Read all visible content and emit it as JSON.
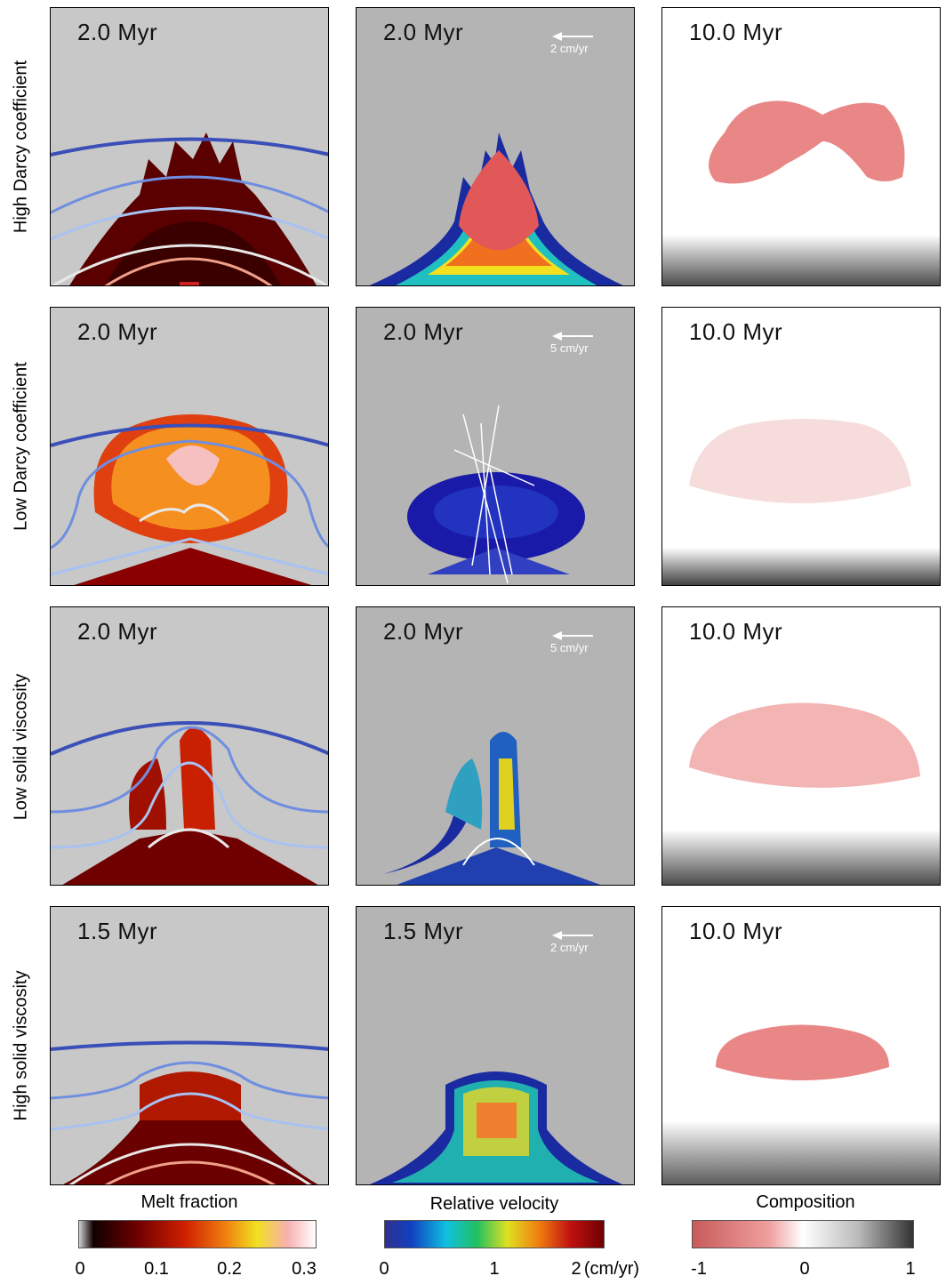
{
  "rows": [
    {
      "label": "High Darcy coefficient",
      "melt_time": "2.0 Myr",
      "vel_time": "2.0 Myr",
      "vel_scale": "2 cm/yr",
      "comp_time": "10.0 Myr"
    },
    {
      "label": "Low Darcy coefficient",
      "melt_time": "2.0 Myr",
      "vel_time": "2.0 Myr",
      "vel_scale": "5 cm/yr",
      "comp_time": "10.0 Myr"
    },
    {
      "label": "Low solid viscosity",
      "melt_time": "2.0 Myr",
      "vel_time": "2.0 Myr",
      "vel_scale": "5 cm/yr",
      "comp_time": "10.0 Myr"
    },
    {
      "label": "High solid viscosity",
      "melt_time": "1.5 Myr",
      "vel_time": "1.5 Myr",
      "vel_scale": "2 cm/yr",
      "comp_time": "10.0 Myr"
    }
  ],
  "colorbars": {
    "melt": {
      "title": "Melt fraction",
      "ticks": [
        "0",
        "0.1",
        "0.2",
        "0.3"
      ]
    },
    "velocity": {
      "title": "Relative velocity",
      "ticks": [
        "0",
        "1",
        "2"
      ],
      "unit": "(cm/yr)"
    },
    "composition": {
      "title": "Composition",
      "ticks": [
        "-1",
        "0",
        "1"
      ]
    }
  },
  "colors": {
    "melt_bg": "#c8c8c8",
    "vel_bg": "#b4b4b4",
    "comp_bg": "#ffffff",
    "plume_red": "#e06b6b"
  }
}
